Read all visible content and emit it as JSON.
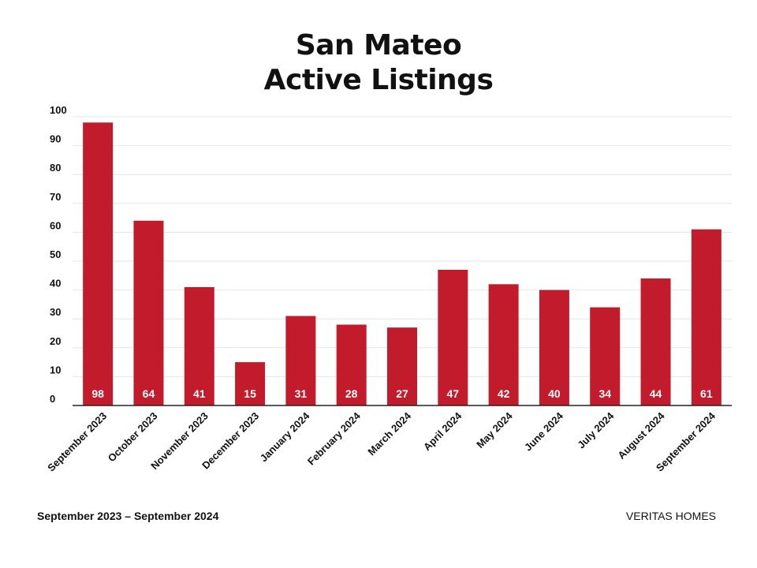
{
  "chart_title": {
    "line1": "San Mateo",
    "line2": "Active Listings"
  },
  "footer": {
    "date_range": "September 2023 – September 2024",
    "brand": "VERITAS HOMES"
  },
  "colors": {
    "bar": "#c21b2c",
    "bar_label": "#ffffff",
    "grid": "#e6e6e6",
    "axis": "#222222",
    "text": "#111111"
  },
  "chart_data": {
    "type": "bar",
    "title": "San Mateo Active Listings",
    "xlabel": "",
    "ylabel": "",
    "ylim": [
      0,
      100
    ],
    "yticks": [
      0,
      10,
      20,
      30,
      40,
      50,
      60,
      70,
      80,
      90,
      100
    ],
    "grid": true,
    "categories": [
      "September 2023",
      "October 2023",
      "November 2023",
      "December 2023",
      "January 2024",
      "February 2024",
      "March 2024",
      "April 2024",
      "May 2024",
      "June 2024",
      "July 2024",
      "August 2024",
      "September 2024"
    ],
    "values": [
      98,
      64,
      41,
      15,
      31,
      28,
      27,
      47,
      42,
      40,
      34,
      44,
      61
    ]
  }
}
